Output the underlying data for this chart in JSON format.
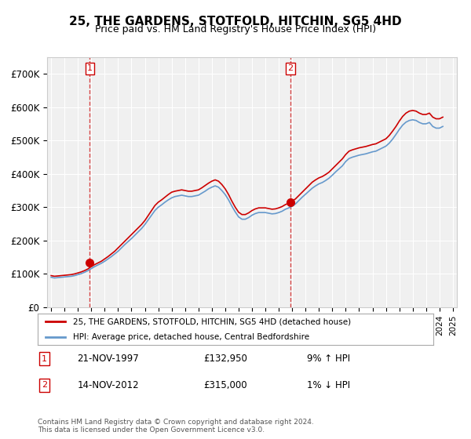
{
  "title": "25, THE GARDENS, STOTFOLD, HITCHIN, SG5 4HD",
  "subtitle": "Price paid vs. HM Land Registry's House Price Index (HPI)",
  "legend_label_red": "25, THE GARDENS, STOTFOLD, HITCHIN, SG5 4HD (detached house)",
  "legend_label_blue": "HPI: Average price, detached house, Central Bedfordshire",
  "sale1_label": "1",
  "sale1_date": "21-NOV-1997",
  "sale1_price": "£132,950",
  "sale1_hpi": "9% ↑ HPI",
  "sale2_label": "2",
  "sale2_date": "14-NOV-2012",
  "sale2_price": "£315,000",
  "sale2_hpi": "1% ↓ HPI",
  "footer": "Contains HM Land Registry data © Crown copyright and database right 2024.\nThis data is licensed under the Open Government Licence v3.0.",
  "ylim": [
    0,
    750000
  ],
  "yticks": [
    0,
    100000,
    200000,
    300000,
    400000,
    500000,
    600000,
    700000
  ],
  "ytick_labels": [
    "£0",
    "£100K",
    "£200K",
    "£300K",
    "£400K",
    "£500K",
    "£600K",
    "£700K"
  ],
  "red_color": "#cc0000",
  "blue_color": "#6699cc",
  "background_plot": "#f0f0f0",
  "background_fig": "#ffffff",
  "grid_color": "#ffffff",
  "dashed_line_color": "#cc0000",
  "sale1_x": 1997.89,
  "sale2_x": 2012.87,
  "sale1_y": 132950,
  "sale2_y": 315000,
  "hpi_red_x": [
    1995,
    1995.25,
    1995.5,
    1995.75,
    1996,
    1996.25,
    1996.5,
    1996.75,
    1997,
    1997.25,
    1997.5,
    1997.75,
    1998,
    1998.25,
    1998.5,
    1998.75,
    1999,
    1999.25,
    1999.5,
    1999.75,
    2000,
    2000.25,
    2000.5,
    2000.75,
    2001,
    2001.25,
    2001.5,
    2001.75,
    2002,
    2002.25,
    2002.5,
    2002.75,
    2003,
    2003.25,
    2003.5,
    2003.75,
    2004,
    2004.25,
    2004.5,
    2004.75,
    2005,
    2005.25,
    2005.5,
    2005.75,
    2006,
    2006.25,
    2006.5,
    2006.75,
    2007,
    2007.25,
    2007.5,
    2007.75,
    2008,
    2008.25,
    2008.5,
    2008.75,
    2009,
    2009.25,
    2009.5,
    2009.75,
    2010,
    2010.25,
    2010.5,
    2010.75,
    2011,
    2011.25,
    2011.5,
    2011.75,
    2012,
    2012.25,
    2012.5,
    2012.75,
    2013,
    2013.25,
    2013.5,
    2013.75,
    2014,
    2014.25,
    2014.5,
    2014.75,
    2015,
    2015.25,
    2015.5,
    2015.75,
    2016,
    2016.25,
    2016.5,
    2016.75,
    2017,
    2017.25,
    2017.5,
    2017.75,
    2018,
    2018.25,
    2018.5,
    2018.75,
    2019,
    2019.25,
    2019.5,
    2019.75,
    2020,
    2020.25,
    2020.5,
    2020.75,
    2021,
    2021.25,
    2021.5,
    2021.75,
    2022,
    2022.25,
    2022.5,
    2022.75,
    2023,
    2023.25,
    2023.5,
    2023.75,
    2024,
    2024.25
  ],
  "hpi_red_y": [
    95000,
    93000,
    94000,
    95000,
    96000,
    97000,
    98000,
    100000,
    103000,
    106000,
    110000,
    115000,
    122000,
    128000,
    133000,
    138000,
    145000,
    152000,
    160000,
    168000,
    178000,
    188000,
    198000,
    208000,
    218000,
    228000,
    238000,
    248000,
    260000,
    275000,
    290000,
    305000,
    315000,
    322000,
    330000,
    338000,
    345000,
    348000,
    350000,
    352000,
    350000,
    348000,
    348000,
    350000,
    352000,
    358000,
    365000,
    372000,
    378000,
    382000,
    378000,
    368000,
    355000,
    338000,
    318000,
    300000,
    285000,
    278000,
    278000,
    283000,
    290000,
    295000,
    298000,
    298000,
    298000,
    296000,
    294000,
    295000,
    298000,
    302000,
    308000,
    312000,
    318000,
    325000,
    335000,
    345000,
    355000,
    365000,
    375000,
    382000,
    388000,
    392000,
    398000,
    405000,
    415000,
    425000,
    435000,
    445000,
    458000,
    468000,
    472000,
    475000,
    478000,
    480000,
    482000,
    485000,
    488000,
    490000,
    495000,
    500000,
    505000,
    515000,
    528000,
    542000,
    558000,
    572000,
    582000,
    588000,
    590000,
    588000,
    582000,
    578000,
    578000,
    582000,
    570000,
    565000,
    565000,
    570000
  ],
  "hpi_blue_x": [
    1995,
    1995.25,
    1995.5,
    1995.75,
    1996,
    1996.25,
    1996.5,
    1996.75,
    1997,
    1997.25,
    1997.5,
    1997.75,
    1998,
    1998.25,
    1998.5,
    1998.75,
    1999,
    1999.25,
    1999.5,
    1999.75,
    2000,
    2000.25,
    2000.5,
    2000.75,
    2001,
    2001.25,
    2001.5,
    2001.75,
    2002,
    2002.25,
    2002.5,
    2002.75,
    2003,
    2003.25,
    2003.5,
    2003.75,
    2004,
    2004.25,
    2004.5,
    2004.75,
    2005,
    2005.25,
    2005.5,
    2005.75,
    2006,
    2006.25,
    2006.5,
    2006.75,
    2007,
    2007.25,
    2007.5,
    2007.75,
    2008,
    2008.25,
    2008.5,
    2008.75,
    2009,
    2009.25,
    2009.5,
    2009.75,
    2010,
    2010.25,
    2010.5,
    2010.75,
    2011,
    2011.25,
    2011.5,
    2011.75,
    2012,
    2012.25,
    2012.5,
    2012.75,
    2013,
    2013.25,
    2013.5,
    2013.75,
    2014,
    2014.25,
    2014.5,
    2014.75,
    2015,
    2015.25,
    2015.5,
    2015.75,
    2016,
    2016.25,
    2016.5,
    2016.75,
    2017,
    2017.25,
    2017.5,
    2017.75,
    2018,
    2018.25,
    2018.5,
    2018.75,
    2019,
    2019.25,
    2019.5,
    2019.75,
    2020,
    2020.25,
    2020.5,
    2020.75,
    2021,
    2021.25,
    2021.5,
    2021.75,
    2022,
    2022.25,
    2022.5,
    2022.75,
    2023,
    2023.25,
    2023.5,
    2023.75,
    2024,
    2024.25
  ],
  "hpi_blue_y": [
    90000,
    88000,
    89000,
    90000,
    91000,
    92000,
    93000,
    95000,
    98000,
    101000,
    105000,
    110000,
    116000,
    122000,
    127000,
    132000,
    138000,
    145000,
    152000,
    160000,
    168000,
    178000,
    188000,
    197000,
    206000,
    216000,
    226000,
    236000,
    248000,
    262000,
    276000,
    290000,
    300000,
    307000,
    315000,
    322000,
    328000,
    332000,
    334000,
    336000,
    334000,
    332000,
    332000,
    334000,
    336000,
    342000,
    348000,
    355000,
    360000,
    364000,
    360000,
    350000,
    338000,
    322000,
    303000,
    286000,
    271000,
    264000,
    264000,
    269000,
    276000,
    281000,
    284000,
    284000,
    284000,
    282000,
    280000,
    281000,
    284000,
    288000,
    294000,
    298000,
    303000,
    310000,
    320000,
    330000,
    339000,
    348000,
    357000,
    364000,
    370000,
    374000,
    380000,
    387000,
    396000,
    406000,
    415000,
    424000,
    437000,
    446000,
    450000,
    453000,
    456000,
    458000,
    460000,
    463000,
    466000,
    468000,
    473000,
    478000,
    483000,
    492000,
    504000,
    518000,
    533000,
    546000,
    555000,
    560000,
    562000,
    560000,
    554000,
    550000,
    550000,
    554000,
    542000,
    537000,
    537000,
    542000
  ],
  "xtick_years": [
    1995,
    1996,
    1997,
    1998,
    1999,
    2000,
    2001,
    2002,
    2003,
    2004,
    2005,
    2006,
    2007,
    2008,
    2009,
    2010,
    2011,
    2012,
    2013,
    2014,
    2015,
    2016,
    2017,
    2018,
    2019,
    2020,
    2021,
    2022,
    2023,
    2024,
    2025
  ],
  "xmin": 1994.7,
  "xmax": 2025.3
}
